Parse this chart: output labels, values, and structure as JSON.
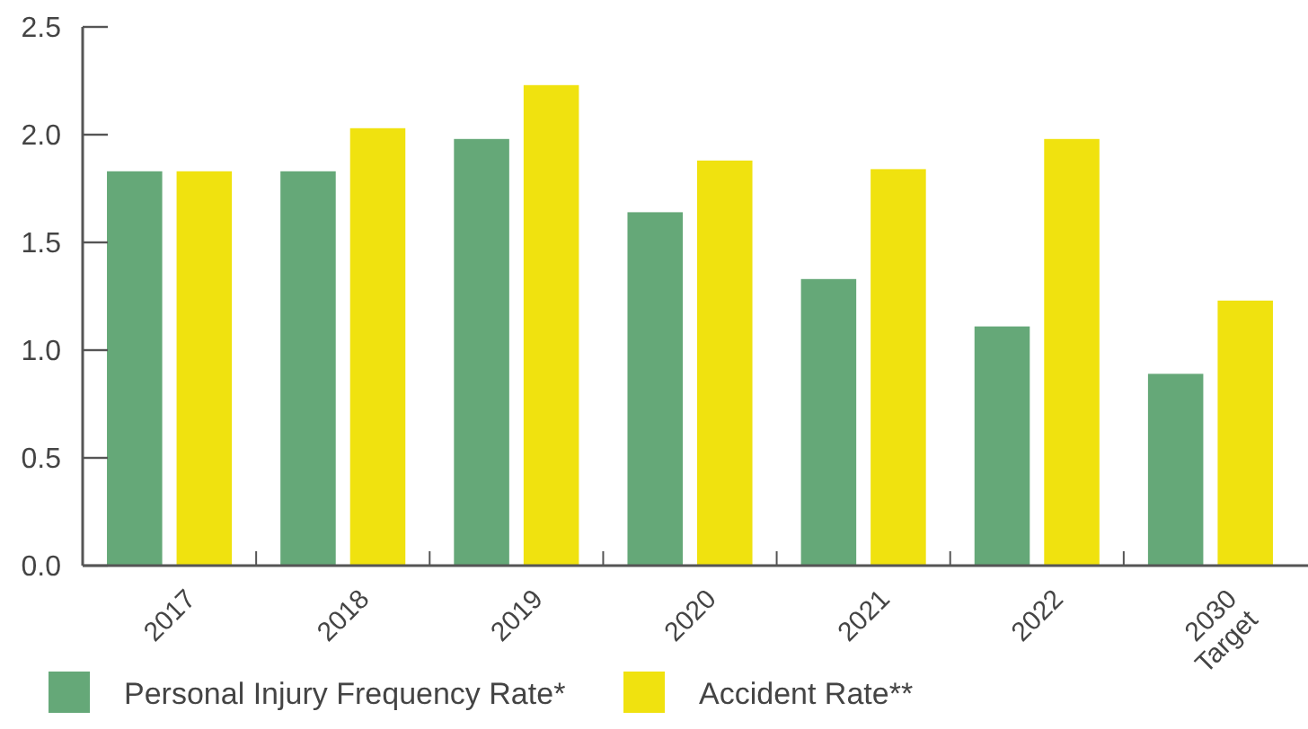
{
  "chart_data": {
    "type": "bar",
    "categories": [
      "2017",
      "2018",
      "2019",
      "2020",
      "2021",
      "2022",
      "2030 Target"
    ],
    "series": [
      {
        "name": "Personal Injury Frequency Rate*",
        "color": "#65a878",
        "values": [
          1.83,
          1.83,
          1.98,
          1.64,
          1.33,
          1.11,
          0.89
        ]
      },
      {
        "name": "Accident Rate**",
        "color": "#f0e20f",
        "values": [
          1.83,
          2.03,
          2.23,
          1.88,
          1.84,
          1.98,
          1.23
        ]
      }
    ],
    "ylim": [
      0,
      2.5
    ],
    "yticks": [
      {
        "value": 0,
        "label": "0.0"
      },
      {
        "value": 0.5,
        "label": "0.5"
      },
      {
        "value": 1,
        "label": "1.0"
      },
      {
        "value": 1.5,
        "label": "1.5"
      },
      {
        "value": 2,
        "label": "2.0"
      },
      {
        "value": 2.5,
        "label": "2.5"
      }
    ],
    "grid": false,
    "legend": "bottom"
  }
}
